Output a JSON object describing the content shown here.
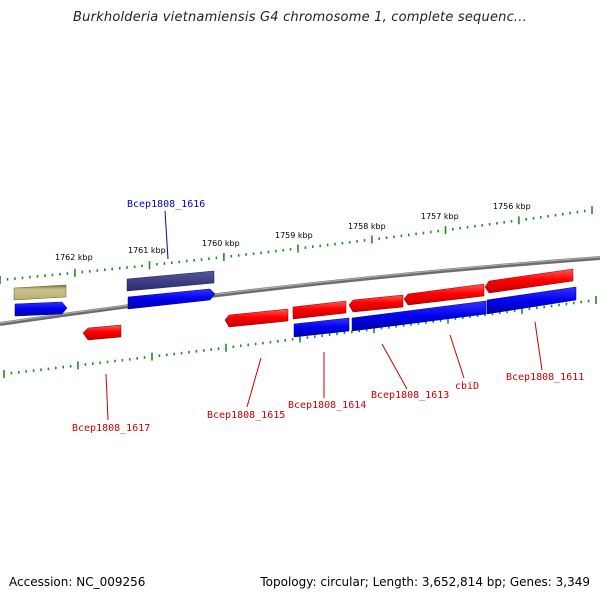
{
  "title": "Burkholderia vietnamiensis G4 chromosome 1, complete sequenc...",
  "footer": {
    "accession": "Accession: NC_009256",
    "summary": "Topology: circular; Length: 3,652,814 bp; Genes: 3,349"
  },
  "colors": {
    "forward_gene": "#ff0000",
    "reverse_gene": "#0000ee",
    "selected_gene": "#3a3a8c",
    "other_feature": "#a89a52",
    "backbone": "#7a7a7a",
    "tick": "#228b22",
    "label_red": "#cc0000",
    "label_blue": "#0000cc"
  },
  "scale_labels": [
    "1762 kbp",
    "1761 kbp",
    "1760 kbp",
    "1759 kbp",
    "1758 kbp",
    "1757 kbp",
    "1756 kbp"
  ],
  "gene_labels": [
    "Bcep1808_1616",
    "Bcep1808_1617",
    "Bcep1808_1615",
    "Bcep1808_1614",
    "Bcep1808_1613",
    "cbiD",
    "Bcep1808_1611"
  ]
}
